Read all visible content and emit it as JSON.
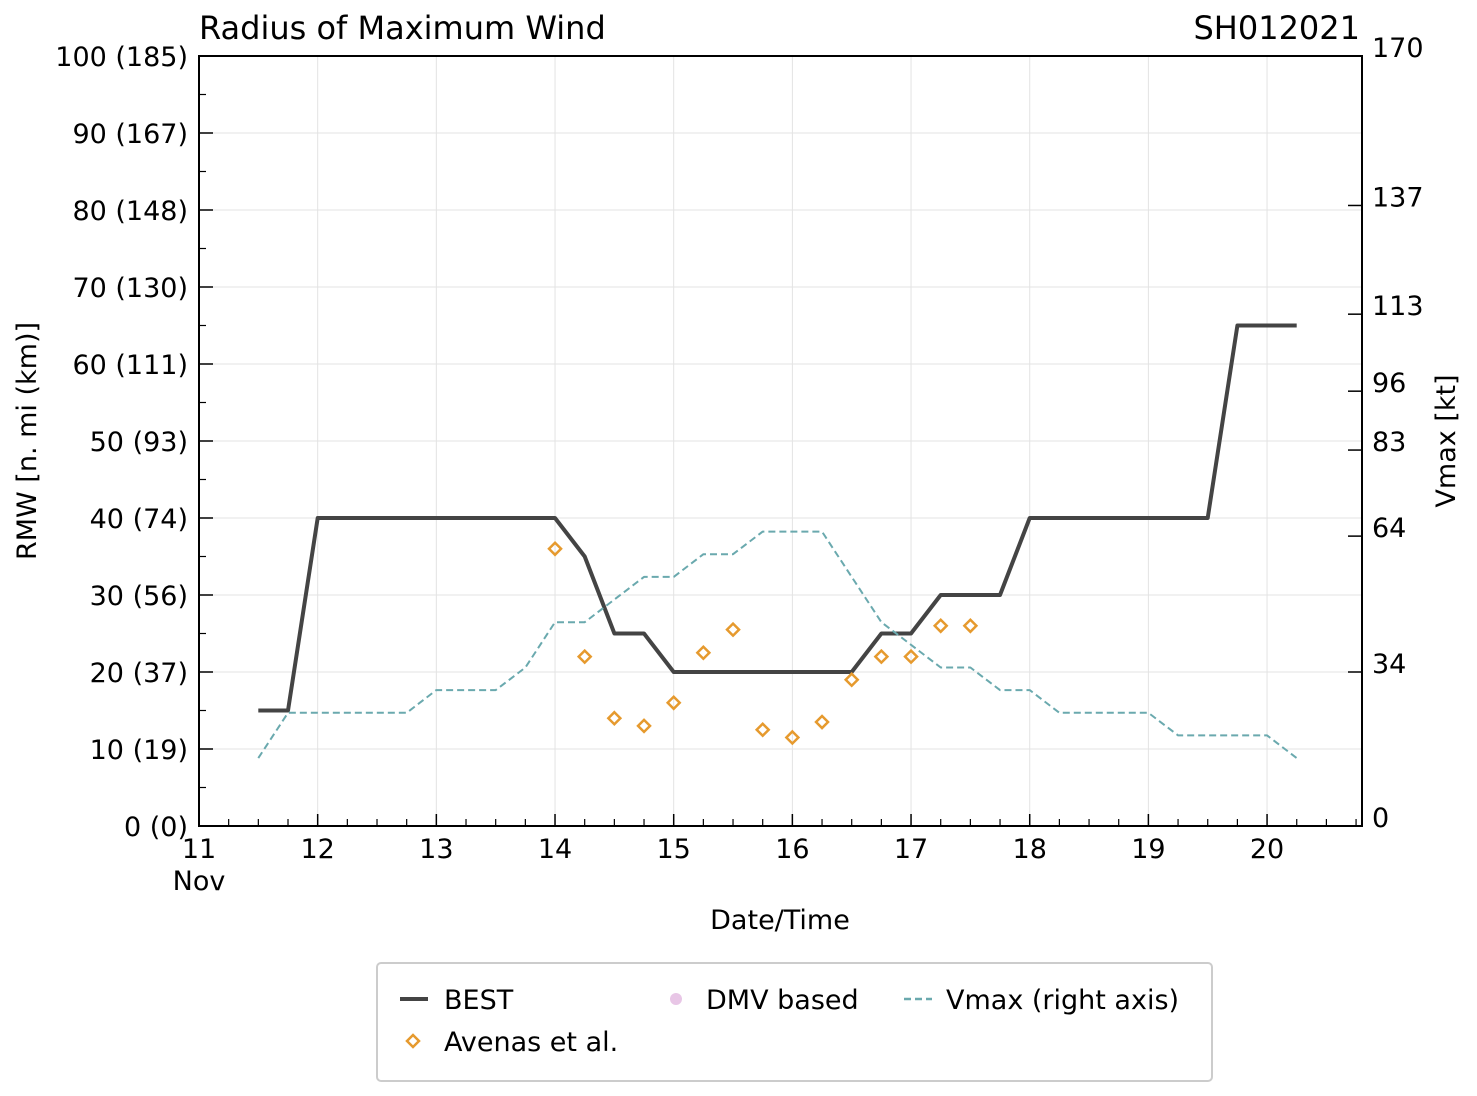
{
  "chart_data": {
    "type": "line",
    "title": "Radius of Maximum Wind",
    "storm_id": "SH012021",
    "xlabel": "Date/Time",
    "ylabel": "RMW [n. mi (km)]",
    "y2label": "Vmax [kt]",
    "xlim": [
      11,
      20.8
    ],
    "ylim": [
      0,
      100
    ],
    "y2lim": [
      0,
      170
    ],
    "grid": true,
    "x_ticks": [
      {
        "value": 11,
        "label": "11",
        "sublabel": "Nov"
      },
      {
        "value": 12,
        "label": "12",
        "sublabel": ""
      },
      {
        "value": 13,
        "label": "13",
        "sublabel": ""
      },
      {
        "value": 14,
        "label": "14",
        "sublabel": ""
      },
      {
        "value": 15,
        "label": "15",
        "sublabel": ""
      },
      {
        "value": 16,
        "label": "16",
        "sublabel": ""
      },
      {
        "value": 17,
        "label": "17",
        "sublabel": ""
      },
      {
        "value": 18,
        "label": "18",
        "sublabel": ""
      },
      {
        "value": 19,
        "label": "19",
        "sublabel": ""
      },
      {
        "value": 20,
        "label": "20",
        "sublabel": ""
      }
    ],
    "y_ticks": [
      {
        "value": 0,
        "label": "0 (0)"
      },
      {
        "value": 10,
        "label": "10 (19)"
      },
      {
        "value": 20,
        "label": "20 (37)"
      },
      {
        "value": 30,
        "label": "30 (56)"
      },
      {
        "value": 40,
        "label": "40 (74)"
      },
      {
        "value": 50,
        "label": "50 (93)"
      },
      {
        "value": 60,
        "label": "60 (111)"
      },
      {
        "value": 70,
        "label": "70 (130)"
      },
      {
        "value": 80,
        "label": "80 (148)"
      },
      {
        "value": 90,
        "label": "90 (167)"
      },
      {
        "value": 100,
        "label": "100 (185)"
      }
    ],
    "y2_ticks": [
      {
        "value": 0,
        "label": "0"
      },
      {
        "value": 34,
        "label": "34"
      },
      {
        "value": 64,
        "label": "64"
      },
      {
        "value": 83,
        "label": "83"
      },
      {
        "value": 96,
        "label": "96"
      },
      {
        "value": 113,
        "label": "113"
      },
      {
        "value": 137,
        "label": "137"
      },
      {
        "value": 170,
        "label": "170"
      }
    ],
    "series": [
      {
        "name": "BEST",
        "kind": "line",
        "axis": "left",
        "color": "#444444",
        "x": [
          11.5,
          11.75,
          12.0,
          12.25,
          12.5,
          12.75,
          13.0,
          13.25,
          13.5,
          13.75,
          14.0,
          14.25,
          14.5,
          14.75,
          15.0,
          15.25,
          15.5,
          15.75,
          16.0,
          16.25,
          16.5,
          16.75,
          17.0,
          17.25,
          17.5,
          17.75,
          18.0,
          18.25,
          18.5,
          18.75,
          19.0,
          19.25,
          19.5,
          19.75,
          20.0,
          20.25
        ],
        "y": [
          15,
          15,
          40,
          40,
          40,
          40,
          40,
          40,
          40,
          40,
          40,
          35,
          25,
          25,
          20,
          20,
          20,
          20,
          20,
          20,
          20,
          25,
          25,
          30,
          30,
          30,
          40,
          40,
          40,
          40,
          40,
          40,
          40,
          65,
          65,
          65
        ]
      },
      {
        "name": "Avenas et al.",
        "kind": "scatter",
        "marker": "diamond",
        "axis": "left",
        "color": "#e69a2e",
        "x": [
          14.0,
          14.25,
          14.5,
          14.75,
          15.0,
          15.25,
          15.5,
          15.75,
          16.0,
          16.25,
          16.5,
          16.75,
          17.0,
          17.25,
          17.5
        ],
        "y": [
          36,
          22,
          14,
          13,
          16,
          22.5,
          25.5,
          12.5,
          11.5,
          13.5,
          19,
          22,
          22,
          26,
          26
        ]
      },
      {
        "name": "DMV based",
        "kind": "scatter",
        "marker": "circle",
        "axis": "left",
        "color": "#e8c6e6",
        "x": [],
        "y": []
      },
      {
        "name": "Vmax (right axis)",
        "kind": "line",
        "style": "dashed",
        "axis": "right",
        "color": "#6aa9ae",
        "x": [
          11.5,
          11.75,
          12.0,
          12.25,
          12.5,
          12.75,
          13.0,
          13.25,
          13.5,
          13.75,
          14.0,
          14.25,
          14.5,
          14.75,
          15.0,
          15.25,
          15.5,
          15.75,
          16.0,
          16.25,
          16.5,
          16.75,
          17.0,
          17.25,
          17.5,
          17.75,
          18.0,
          18.25,
          18.5,
          18.75,
          19.0,
          19.25,
          19.5,
          19.75,
          20.0,
          20.25
        ],
        "y": [
          15,
          25,
          25,
          25,
          25,
          25,
          30,
          30,
          30,
          35,
          45,
          45,
          50,
          55,
          55,
          60,
          60,
          65,
          65,
          65,
          55,
          45,
          40,
          35,
          35,
          30,
          30,
          25,
          25,
          25,
          25,
          20,
          20,
          20,
          20,
          15
        ]
      }
    ],
    "legend": {
      "position": "bottom-center",
      "entries": [
        "BEST",
        "Avenas et al.",
        "DMV based",
        "Vmax (right axis)"
      ]
    }
  }
}
